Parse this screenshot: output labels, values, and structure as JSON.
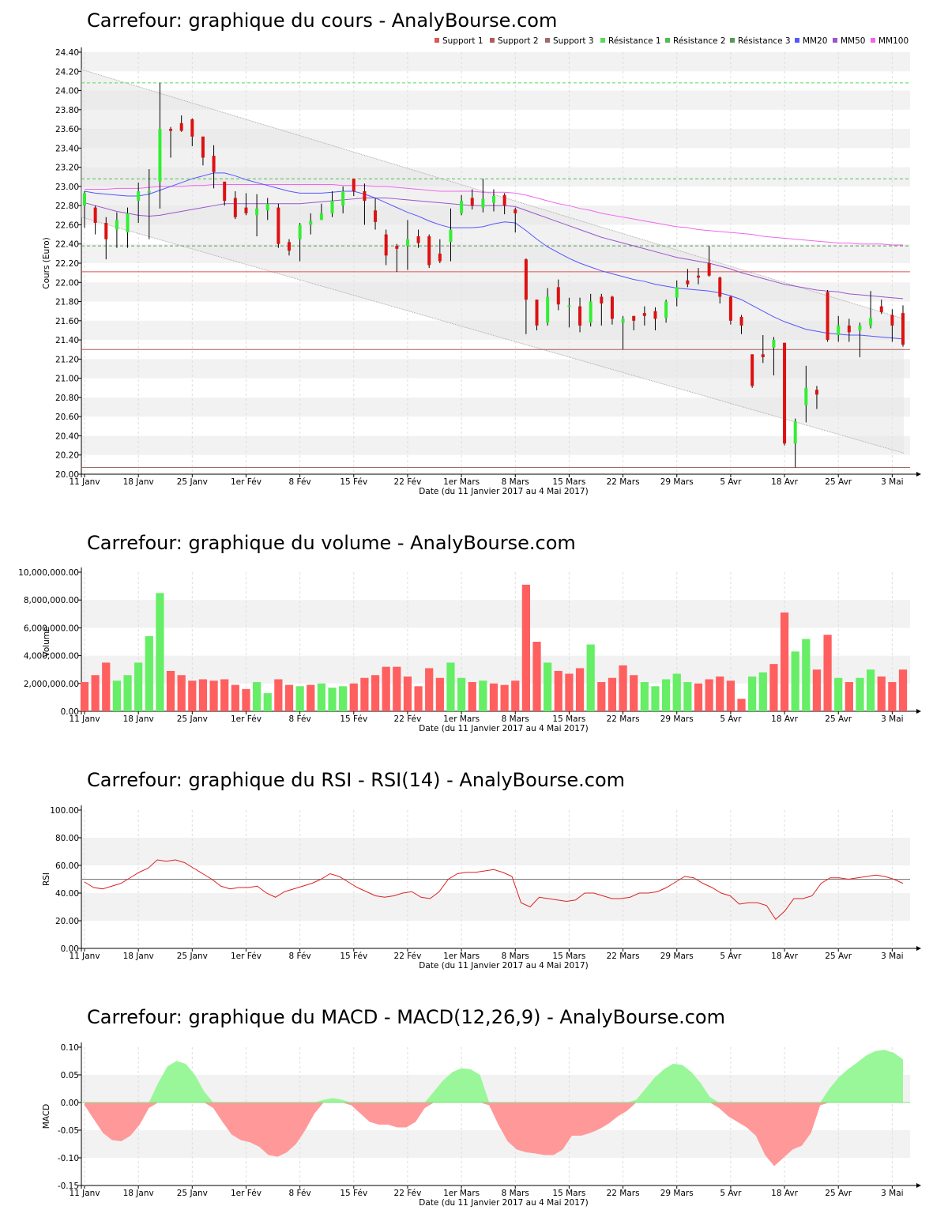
{
  "charts": [
    {
      "id": "price",
      "title": "Carrefour: graphique du cours - AnalyBourse.com",
      "type": "candlestick",
      "ylabel": "Cours (Euro)",
      "xlabel": "Date (du 11 Janvier 2017 au 4 Mai 2017)",
      "ylim": [
        20.0,
        24.4
      ],
      "ytick_step": 0.2,
      "ytick_labels": [
        "20.00",
        "20.20",
        "20.40",
        "20.60",
        "20.80",
        "21.00",
        "21.20",
        "21.40",
        "21.60",
        "21.80",
        "22.00",
        "22.20",
        "22.40",
        "22.60",
        "22.80",
        "23.00",
        "23.20",
        "23.40",
        "23.60",
        "23.80",
        "24.00",
        "24.20",
        "24.40"
      ],
      "x_labels": [
        "11 Janv",
        "18 Janv",
        "25 Janv",
        "1er Fév",
        "8 Fév",
        "15 Fév",
        "22 Fév",
        "1er Mars",
        "8 Mars",
        "15 Mars",
        "22 Mars",
        "29 Mars",
        "5 Avr",
        "18 Avr",
        "25 Avr",
        "3 Mai"
      ],
      "x_label_positions": [
        0,
        5,
        10,
        15,
        20,
        25,
        30,
        35,
        40,
        45,
        50,
        55,
        60,
        65,
        70,
        75
      ],
      "n_sessions": 77,
      "legend": [
        {
          "label": "Support 1",
          "color": "#e05555"
        },
        {
          "label": "Support 2",
          "color": "#b05a5a"
        },
        {
          "label": "Support 3",
          "color": "#a06a6a"
        },
        {
          "label": "Résistance 1",
          "color": "#55dd55"
        },
        {
          "label": "Résistance 2",
          "color": "#55bb55"
        },
        {
          "label": "Résistance 3",
          "color": "#559955"
        },
        {
          "label": "MM20",
          "color": "#5555ff"
        },
        {
          "label": "MM50",
          "color": "#9955cc"
        },
        {
          "label": "MM100",
          "color": "#ee66ee"
        }
      ],
      "supports": [
        22.11,
        21.3,
        20.07
      ],
      "resistances": [
        24.08,
        23.08,
        22.38
      ],
      "channel_upper": [
        24.22,
        21.62
      ],
      "channel_lower": [
        22.68,
        20.22
      ],
      "candles": [
        [
          22.8,
          22.93,
          22.95,
          22.57
        ],
        [
          22.78,
          22.62,
          22.8,
          22.5
        ],
        [
          22.62,
          22.45,
          22.68,
          22.24
        ],
        [
          22.55,
          22.65,
          22.73,
          22.36
        ],
        [
          22.52,
          22.72,
          22.78,
          22.36
        ],
        [
          22.85,
          22.95,
          23.04,
          22.62
        ],
        [
          22.95,
          22.95,
          23.18,
          22.45
        ],
        [
          23.05,
          23.6,
          24.08,
          22.77
        ],
        [
          23.6,
          23.58,
          23.62,
          23.3
        ],
        [
          23.66,
          23.58,
          23.74,
          23.57
        ],
        [
          23.7,
          23.52,
          23.71,
          23.42
        ],
        [
          23.52,
          23.3,
          23.52,
          23.22
        ],
        [
          23.32,
          23.15,
          23.43,
          22.98
        ],
        [
          23.05,
          22.85,
          23.05,
          22.8
        ],
        [
          22.88,
          22.68,
          22.95,
          22.66
        ],
        [
          22.78,
          22.72,
          22.93,
          22.7
        ],
        [
          22.7,
          22.77,
          22.92,
          22.48
        ],
        [
          22.75,
          22.82,
          22.88,
          22.65
        ],
        [
          22.78,
          22.4,
          22.82,
          22.36
        ],
        [
          22.42,
          22.33,
          22.45,
          22.28
        ],
        [
          22.45,
          22.6,
          22.62,
          22.22
        ],
        [
          22.6,
          22.64,
          22.72,
          22.5
        ],
        [
          22.65,
          22.72,
          22.82,
          22.65
        ],
        [
          22.72,
          22.85,
          22.95,
          22.68
        ],
        [
          22.8,
          22.95,
          23.0,
          22.72
        ],
        [
          23.08,
          22.95,
          23.08,
          22.9
        ],
        [
          22.95,
          22.85,
          23.03,
          22.6
        ],
        [
          22.75,
          22.63,
          22.88,
          22.55
        ],
        [
          22.5,
          22.28,
          22.55,
          22.18
        ],
        [
          22.38,
          22.35,
          22.4,
          22.11
        ],
        [
          22.38,
          22.45,
          22.65,
          22.13
        ],
        [
          22.48,
          22.41,
          22.55,
          22.36
        ],
        [
          22.48,
          22.18,
          22.5,
          22.15
        ],
        [
          22.3,
          22.22,
          22.45,
          22.2
        ],
        [
          22.42,
          22.55,
          22.77,
          22.22
        ],
        [
          22.72,
          22.85,
          22.91,
          22.7
        ],
        [
          22.88,
          22.8,
          22.97,
          22.76
        ],
        [
          22.78,
          22.87,
          23.08,
          22.73
        ],
        [
          22.83,
          22.9,
          22.97,
          22.74
        ],
        [
          22.91,
          22.8,
          22.93,
          22.71
        ],
        [
          22.76,
          22.72,
          22.78,
          22.52
        ],
        [
          22.24,
          21.82,
          22.25,
          21.46
        ],
        [
          21.82,
          21.55,
          21.82,
          21.5
        ],
        [
          21.58,
          21.85,
          21.94,
          21.55
        ],
        [
          21.95,
          21.77,
          22.03,
          21.71
        ],
        [
          21.75,
          21.76,
          21.84,
          21.53
        ],
        [
          21.75,
          21.55,
          21.84,
          21.48
        ],
        [
          21.58,
          21.8,
          21.88,
          21.54
        ],
        [
          21.85,
          21.78,
          21.88,
          21.55
        ],
        [
          21.85,
          21.62,
          21.86,
          21.56
        ],
        [
          21.58,
          21.62,
          21.65,
          21.3
        ],
        [
          21.65,
          21.6,
          21.65,
          21.5
        ],
        [
          21.68,
          21.65,
          21.75,
          21.55
        ],
        [
          21.7,
          21.62,
          21.74,
          21.5
        ],
        [
          21.63,
          21.8,
          21.82,
          21.58
        ],
        [
          21.84,
          21.95,
          22.02,
          21.75
        ],
        [
          22.02,
          21.98,
          22.14,
          21.95
        ],
        [
          22.07,
          22.05,
          22.15,
          21.98
        ],
        [
          22.2,
          22.07,
          22.38,
          22.06
        ],
        [
          22.05,
          21.85,
          22.06,
          21.78
        ],
        [
          21.85,
          21.6,
          21.86,
          21.56
        ],
        [
          21.64,
          21.55,
          21.66,
          21.46
        ],
        [
          21.25,
          20.92,
          21.25,
          20.9
        ],
        [
          21.25,
          21.22,
          21.45,
          21.16
        ],
        [
          21.32,
          21.4,
          21.43,
          21.03
        ],
        [
          21.37,
          20.32,
          21.37,
          20.3
        ],
        [
          20.32,
          20.55,
          20.58,
          20.07
        ],
        [
          20.72,
          20.9,
          21.13,
          20.54
        ],
        [
          20.88,
          20.83,
          20.92,
          20.68
        ],
        [
          21.9,
          21.4,
          21.92,
          21.38
        ],
        [
          21.45,
          21.55,
          21.65,
          21.38
        ],
        [
          21.55,
          21.48,
          21.62,
          21.38
        ],
        [
          21.5,
          21.55,
          21.58,
          21.22
        ],
        [
          21.55,
          21.63,
          21.91,
          21.52
        ],
        [
          21.75,
          21.69,
          21.82,
          21.67
        ],
        [
          21.66,
          21.55,
          21.72,
          21.38
        ],
        [
          21.68,
          21.35,
          21.76,
          21.33
        ]
      ],
      "ma20": [
        22.95,
        22.93,
        22.92,
        22.91,
        22.9,
        22.9,
        22.92,
        22.96,
        23.0,
        23.04,
        23.08,
        23.11,
        23.14,
        23.14,
        23.11,
        23.07,
        23.04,
        23.01,
        22.98,
        22.95,
        22.93,
        22.93,
        22.93,
        22.94,
        22.95,
        22.95,
        22.92,
        22.88,
        22.83,
        22.78,
        22.73,
        22.69,
        22.64,
        22.6,
        22.57,
        22.57,
        22.57,
        22.58,
        22.61,
        22.63,
        22.62,
        22.54,
        22.45,
        22.37,
        22.31,
        22.25,
        22.2,
        22.16,
        22.12,
        22.09,
        22.06,
        22.03,
        22.01,
        21.98,
        21.96,
        21.94,
        21.93,
        21.92,
        21.91,
        21.89,
        21.86,
        21.82,
        21.76,
        21.7,
        21.64,
        21.59,
        21.55,
        21.51,
        21.49,
        21.47,
        21.46,
        21.45,
        21.45,
        21.44,
        21.43,
        21.42,
        21.41
      ],
      "ma50": [
        22.83,
        22.8,
        22.77,
        22.74,
        22.72,
        22.7,
        22.69,
        22.7,
        22.72,
        22.74,
        22.76,
        22.78,
        22.8,
        22.82,
        22.82,
        22.82,
        22.82,
        22.82,
        22.82,
        22.82,
        22.82,
        22.83,
        22.84,
        22.85,
        22.86,
        22.87,
        22.88,
        22.88,
        22.88,
        22.87,
        22.86,
        22.85,
        22.84,
        22.83,
        22.82,
        22.81,
        22.8,
        22.8,
        22.8,
        22.8,
        22.79,
        22.75,
        22.71,
        22.67,
        22.63,
        22.59,
        22.55,
        22.51,
        22.47,
        22.44,
        22.41,
        22.38,
        22.35,
        22.32,
        22.29,
        22.26,
        22.24,
        22.22,
        22.2,
        22.17,
        22.14,
        22.1,
        22.07,
        22.04,
        22.01,
        21.98,
        21.96,
        21.94,
        21.92,
        21.91,
        21.9,
        21.88,
        21.87,
        21.86,
        21.85,
        21.84,
        21.83
      ],
      "ma100": [
        22.97,
        22.97,
        22.97,
        22.98,
        22.98,
        22.98,
        22.99,
        23.0,
        23.0,
        23.0,
        23.01,
        23.01,
        23.02,
        23.02,
        23.02,
        23.02,
        23.02,
        23.02,
        23.02,
        23.02,
        23.02,
        23.02,
        23.02,
        23.02,
        23.01,
        23.01,
        23.01,
        23.0,
        23.0,
        22.99,
        22.98,
        22.97,
        22.96,
        22.95,
        22.95,
        22.95,
        22.95,
        22.94,
        22.94,
        22.94,
        22.93,
        22.91,
        22.88,
        22.85,
        22.82,
        22.8,
        22.77,
        22.75,
        22.72,
        22.7,
        22.68,
        22.66,
        22.64,
        22.62,
        22.6,
        22.58,
        22.57,
        22.55,
        22.54,
        22.53,
        22.52,
        22.51,
        22.5,
        22.48,
        22.47,
        22.46,
        22.45,
        22.44,
        22.43,
        22.42,
        22.41,
        22.41,
        22.4,
        22.4,
        22.4,
        22.39,
        22.39
      ]
    },
    {
      "id": "volume",
      "title": "Carrefour: graphique du volume - AnalyBourse.com",
      "type": "bar",
      "ylabel": "Volume",
      "xlabel": "Date (du 11 Janvier 2017 au 4 Mai 2017)",
      "ylim": [
        0,
        10000000
      ],
      "ytick_labels": [
        "0.00",
        "2,000,000.00",
        "4,000,000.00",
        "6,000,000.00",
        "8,000,000.00",
        "10,000,000.00"
      ],
      "x_labels": [
        "11 Janv",
        "18 Janv",
        "25 Janv",
        "1er Fév",
        "8 Fév",
        "15 Fév",
        "22 Fév",
        "1er Mars",
        "8 Mars",
        "15 Mars",
        "22 Mars",
        "29 Mars",
        "5 Avr",
        "18 Avr",
        "25 Avr",
        "3 Mai"
      ],
      "values": [
        2100000,
        2600000,
        3500000,
        2200000,
        2600000,
        3500000,
        5400000,
        8500000,
        2900000,
        2600000,
        2200000,
        2300000,
        2200000,
        2300000,
        1900000,
        1600000,
        2100000,
        1300000,
        2300000,
        1900000,
        1800000,
        1900000,
        2000000,
        1700000,
        1800000,
        2000000,
        2400000,
        2600000,
        3200000,
        3200000,
        2500000,
        1800000,
        3100000,
        2400000,
        3500000,
        2400000,
        2100000,
        2200000,
        2000000,
        1900000,
        2200000,
        9100000,
        5000000,
        3500000,
        2900000,
        2700000,
        3100000,
        4800000,
        2100000,
        2400000,
        3300000,
        2600000,
        2100000,
        1800000,
        2300000,
        2700000,
        2100000,
        2000000,
        2300000,
        2500000,
        2200000,
        900000,
        2500000,
        2800000,
        3400000,
        7100000,
        4300000,
        5200000,
        3000000,
        5500000,
        2400000,
        2100000,
        2400000,
        3000000,
        2500000,
        2100000,
        3000000
      ],
      "up": [
        0,
        0,
        0,
        1,
        1,
        1,
        1,
        1,
        0,
        0,
        0,
        0,
        0,
        0,
        0,
        0,
        1,
        1,
        0,
        0,
        1,
        0,
        1,
        1,
        1,
        0,
        0,
        0,
        0,
        0,
        0,
        0,
        0,
        0,
        1,
        1,
        0,
        1,
        0,
        0,
        0,
        0,
        0,
        1,
        0,
        0,
        0,
        1,
        0,
        0,
        0,
        0,
        1,
        1,
        1,
        1,
        1,
        0,
        0,
        0,
        0,
        0,
        1,
        1,
        0,
        0,
        1,
        1,
        0,
        0,
        1,
        0,
        1,
        1,
        0,
        0,
        0
      ]
    },
    {
      "id": "rsi",
      "title": "Carrefour: graphique du RSI - RSI(14) - AnalyBourse.com",
      "type": "line",
      "ylabel": "RSI",
      "xlabel": "Date (du 11 Janvier 2017 au 4 Mai 2017)",
      "ylim": [
        0,
        100
      ],
      "ytick_labels": [
        "0.00",
        "20.00",
        "40.00",
        "60.00",
        "80.00",
        "100.00"
      ],
      "x_labels": [
        "11 Janv",
        "18 Janv",
        "25 Janv",
        "1er Fév",
        "8 Fév",
        "15 Fév",
        "22 Fév",
        "1er Mars",
        "8 Mars",
        "15 Mars",
        "22 Mars",
        "29 Mars",
        "5 Avr",
        "18 Avr",
        "25 Avr",
        "3 Mai"
      ],
      "reference": 50,
      "values": [
        48,
        44,
        43,
        45,
        47,
        51,
        55,
        58,
        64,
        63,
        64,
        62,
        58,
        54,
        50,
        45,
        43,
        44,
        44,
        45,
        40,
        37,
        41,
        43,
        45,
        47,
        50,
        54,
        52,
        48,
        44,
        41,
        38,
        37,
        38,
        40,
        41,
        37,
        36,
        41,
        50,
        54,
        55,
        55,
        56,
        57,
        55,
        52,
        33,
        30,
        37,
        36,
        35,
        34,
        35,
        40,
        40,
        38,
        36,
        36,
        37,
        40,
        40,
        41,
        44,
        48,
        52,
        51,
        47,
        44,
        40,
        38,
        32,
        33,
        33,
        31,
        21,
        27,
        36,
        36,
        38,
        47,
        51,
        51,
        50,
        51,
        52,
        53,
        52,
        50,
        47
      ]
    },
    {
      "id": "macd",
      "title": "Carrefour: graphique du MACD - MACD(12,26,9) - AnalyBourse.com",
      "type": "area",
      "ylabel": "MACD",
      "xlabel": "Date (du 11 Janvier 2017 au 4 Mai 2017)",
      "ylim": [
        -0.15,
        0.1
      ],
      "ytick_labels": [
        "-0.15",
        "-0.10",
        "-0.05",
        "0.00",
        "0.05",
        "0.10"
      ],
      "x_labels": [
        "11 Janv",
        "18 Janv",
        "25 Janv",
        "1er Fév",
        "8 Fév",
        "15 Fév",
        "22 Fév",
        "1er Mars",
        "8 Mars",
        "15 Mars",
        "22 Mars",
        "29 Mars",
        "5 Avr",
        "18 Avr",
        "25 Avr",
        "3 Mai"
      ],
      "pos_color": "#99f799",
      "neg_color": "#ff9999",
      "values": [
        -0.005,
        -0.03,
        -0.055,
        -0.068,
        -0.07,
        -0.06,
        -0.04,
        -0.01,
        0.035,
        0.065,
        0.075,
        0.07,
        0.05,
        0.02,
        -0.01,
        -0.035,
        -0.058,
        -0.068,
        -0.072,
        -0.08,
        -0.095,
        -0.098,
        -0.09,
        -0.075,
        -0.05,
        -0.02,
        0.005,
        0.008,
        0.005,
        -0.005,
        -0.02,
        -0.035,
        -0.04,
        -0.04,
        -0.045,
        -0.045,
        -0.035,
        -0.01,
        0.02,
        0.04,
        0.055,
        0.062,
        0.06,
        0.05,
        -0.005,
        -0.04,
        -0.07,
        -0.085,
        -0.09,
        -0.092,
        -0.095,
        -0.095,
        -0.085,
        -0.06,
        -0.06,
        -0.055,
        -0.048,
        -0.038,
        -0.025,
        -0.015,
        0.005,
        0.025,
        0.045,
        0.06,
        0.07,
        0.068,
        0.055,
        0.035,
        0.01,
        -0.01,
        -0.025,
        -0.035,
        -0.045,
        -0.06,
        -0.095,
        -0.115,
        -0.1,
        -0.085,
        -0.078,
        -0.055,
        -0.005,
        0.025,
        0.045,
        0.06,
        0.072,
        0.085,
        0.093,
        0.095,
        0.09,
        0.078
      ]
    }
  ]
}
